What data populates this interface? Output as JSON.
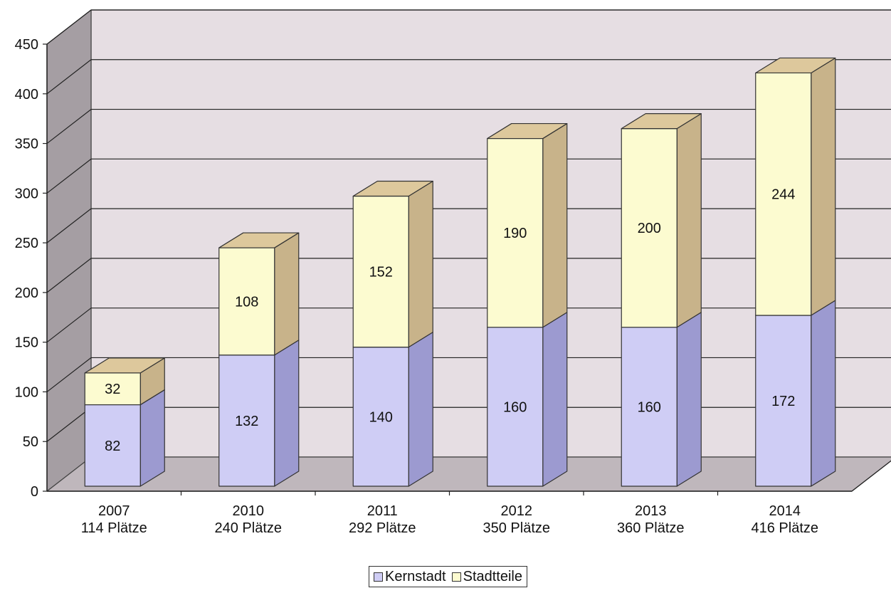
{
  "chart_data": {
    "type": "bar",
    "stacked": true,
    "three_d": true,
    "categories": [
      "2007",
      "2010",
      "2011",
      "2012",
      "2013",
      "2014"
    ],
    "category_sublabels": [
      "114 Plätze",
      "240 Plätze",
      "292 Plätze",
      "350 Plätze",
      "360 Plätze",
      "416 Plätze"
    ],
    "series": [
      {
        "name": "Kernstadt",
        "values": [
          82,
          132,
          140,
          160,
          160,
          172
        ],
        "color": "#cfcdf5",
        "side_color": "#9c9ad0",
        "top_color": "#b3b1e6"
      },
      {
        "name": "Stadtteile",
        "values": [
          32,
          108,
          152,
          190,
          200,
          244
        ],
        "color": "#fcfbd0",
        "side_color": "#c8b38a",
        "top_color": "#ddc89c"
      }
    ],
    "yticks": [
      "0",
      "50",
      "100",
      "150",
      "200",
      "250",
      "300",
      "350",
      "400",
      "450"
    ],
    "ylim": [
      0,
      450
    ],
    "grid": true,
    "legend_position": "bottom",
    "wall_color": "#e6dee3",
    "floor_color": "#bfb7bc",
    "side_wall_color": "#a59ea3"
  }
}
